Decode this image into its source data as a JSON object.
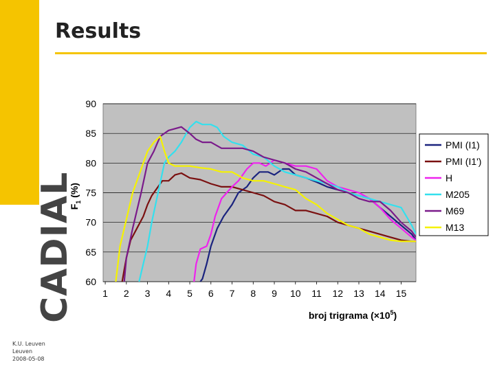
{
  "slide": {
    "title": "Results",
    "brand": "CADIAL",
    "footer": [
      "K.U. Leuven",
      "Leuven",
      "2008-05-08"
    ],
    "accent_color": "#f5c400"
  },
  "chart_data": {
    "type": "line",
    "title": "",
    "xlabel": "broj trigrama (×10",
    "xlabel_sup": "5",
    "xlabel_end": ")",
    "ylabel": "F",
    "ylabel_sub": "1",
    "ylabel_end": " (%)",
    "xlim": [
      0.9,
      15.7
    ],
    "ylim": [
      60,
      90
    ],
    "xticks": [
      1,
      2,
      3,
      4,
      5,
      6,
      7,
      8,
      9,
      10,
      11,
      12,
      13,
      14,
      15
    ],
    "yticks": [
      60,
      65,
      70,
      75,
      80,
      85,
      90
    ],
    "grid": true,
    "legend_position": "right",
    "series": [
      {
        "name": "PMI (I1)",
        "color": "#1a237e",
        "x": [
          5.5,
          5.6,
          5.8,
          6.0,
          6.3,
          6.6,
          7.0,
          7.3,
          7.7,
          8.0,
          8.3,
          8.7,
          9.0,
          9.4,
          9.7,
          10.0,
          10.5,
          11.0,
          11.5,
          12.0,
          12.5,
          13.0,
          13.5,
          14.0,
          14.5,
          15.0,
          15.5,
          15.7
        ],
        "y": [
          60,
          60.5,
          63,
          66,
          69,
          71,
          73,
          75,
          76,
          77.5,
          78.5,
          78.5,
          78,
          79,
          79,
          78,
          77.5,
          76.8,
          76,
          75.5,
          75,
          74.5,
          74,
          72.5,
          71,
          69.5,
          68,
          67
        ]
      },
      {
        "name": "PMI (I1')",
        "color": "#7a1010",
        "x": [
          1.8,
          1.9,
          2.0,
          2.2,
          2.5,
          2.8,
          3.0,
          3.2,
          3.5,
          3.7,
          4.0,
          4.3,
          4.6,
          5.0,
          5.5,
          6.0,
          6.5,
          7.0,
          7.5,
          8.0,
          8.5,
          9.0,
          9.5,
          10.0,
          10.5,
          11.0,
          11.5,
          12.0,
          12.5,
          13.0,
          13.5,
          14.0,
          14.5,
          15.0,
          15.5,
          15.7
        ],
        "y": [
          60,
          62,
          64,
          67,
          69,
          71,
          73,
          74.5,
          76,
          77,
          77,
          78,
          78.3,
          77.5,
          77.2,
          76.5,
          76,
          76,
          75.5,
          75,
          74.5,
          73.5,
          73,
          72,
          72,
          71.5,
          71,
          70,
          69.5,
          69,
          68.5,
          68,
          67.5,
          67,
          66.8,
          66.8
        ]
      },
      {
        "name": "H",
        "color": "#ee22ee",
        "x": [
          5.2,
          5.3,
          5.5,
          5.8,
          6.0,
          6.2,
          6.5,
          7.0,
          7.3,
          7.7,
          8.0,
          8.3,
          8.6,
          9.0,
          9.5,
          10.0,
          10.5,
          11.0,
          11.5,
          12.0,
          12.5,
          13.0,
          13.5,
          14.0,
          14.5,
          15.0,
          15.5,
          15.7
        ],
        "y": [
          60,
          63,
          65.5,
          66,
          68,
          71,
          74,
          76,
          77,
          79,
          80,
          80,
          79.5,
          80.5,
          80,
          79.5,
          79.5,
          79,
          77,
          76,
          75.5,
          75,
          74,
          72.5,
          70.5,
          69,
          67.5,
          67
        ]
      },
      {
        "name": "M205",
        "color": "#33e0ee",
        "x": [
          2.6,
          2.8,
          3.0,
          3.2,
          3.5,
          3.8,
          4.0,
          4.3,
          4.6,
          5.0,
          5.3,
          5.6,
          6.0,
          6.3,
          6.6,
          7.0,
          7.5,
          8.0,
          8.5,
          9.0,
          9.5,
          10.0,
          10.5,
          11.0,
          11.5,
          12.0,
          12.5,
          13.0,
          13.5,
          14.0,
          14.5,
          15.0,
          15.5,
          15.7
        ],
        "y": [
          60,
          63,
          66,
          70,
          75,
          80,
          81,
          82,
          83.5,
          86,
          87,
          86.5,
          86.5,
          86,
          84.5,
          83.5,
          83,
          81.5,
          81,
          79.5,
          78.5,
          78,
          77.5,
          77,
          76.5,
          76,
          75,
          74.5,
          74,
          73.5,
          73,
          72.5,
          69.5,
          68
        ]
      },
      {
        "name": "M69",
        "color": "#7a1a8a",
        "x": [
          1.9,
          2.0,
          2.3,
          2.7,
          3.0,
          3.3,
          3.6,
          4.0,
          4.3,
          4.6,
          5.0,
          5.3,
          5.6,
          6.0,
          6.5,
          7.0,
          7.5,
          8.0,
          8.5,
          9.0,
          9.5,
          10.0,
          10.5,
          11.0,
          11.5,
          12.0,
          12.5,
          13.0,
          13.5,
          14.0,
          14.5,
          15.0,
          15.5,
          15.7
        ],
        "y": [
          60,
          64,
          69,
          75,
          80,
          82,
          84.5,
          85.5,
          85.8,
          86.1,
          85,
          84,
          83.5,
          83.5,
          82.5,
          82.5,
          82.5,
          82,
          81,
          80.5,
          80,
          79,
          78.5,
          77.5,
          76.5,
          75.5,
          75,
          74,
          73.5,
          73.5,
          72,
          70,
          68.5,
          67.5
        ]
      },
      {
        "name": "M13",
        "color": "#f5f200",
        "x": [
          1.5,
          1.7,
          2.0,
          2.3,
          2.6,
          2.8,
          3.0,
          3.3,
          3.6,
          3.8,
          4.0,
          4.3,
          4.6,
          5.0,
          5.5,
          6.0,
          6.5,
          7.0,
          7.5,
          8.0,
          8.5,
          9.0,
          9.5,
          10.0,
          10.5,
          11.0,
          11.5,
          12.0,
          12.5,
          13.0,
          13.5,
          14.0,
          14.5,
          15.0,
          15.5,
          15.7
        ],
        "y": [
          60,
          66,
          70.5,
          75,
          78,
          80,
          82,
          83.5,
          84.5,
          82,
          80,
          79.5,
          79.5,
          79.5,
          79.2,
          79,
          78.5,
          78.5,
          77.5,
          77,
          77,
          76.5,
          76,
          75.5,
          74,
          73,
          71.5,
          70.5,
          69.5,
          69,
          68,
          67.5,
          67,
          66.8,
          66.8,
          66.8
        ]
      }
    ]
  }
}
